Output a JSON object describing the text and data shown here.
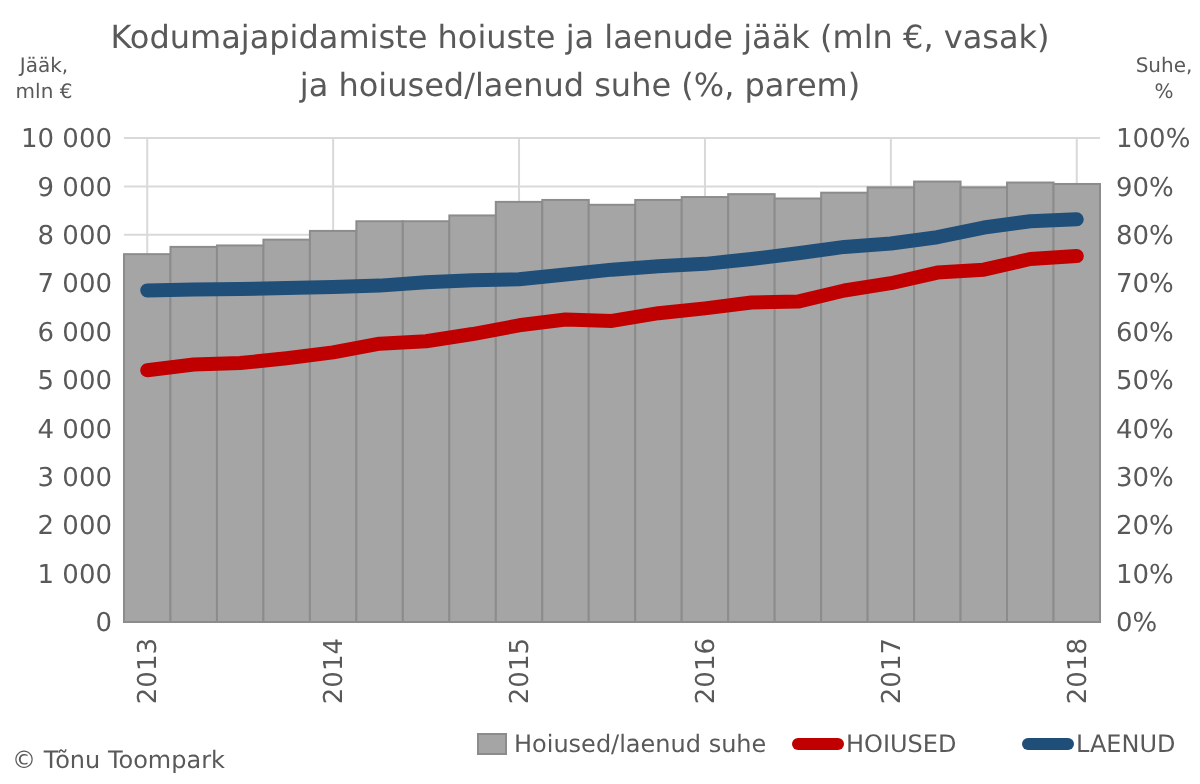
{
  "chart_data": {
    "type": "bar",
    "title": "Kodumajapidamiste hoiuste ja laenude jääk (mln €, vasak)\nja hoiused/laenud suhe (%, parem)",
    "ylabel": "Jääk,\nmln €",
    "y2label": "Suhe,\n%",
    "categories": [
      "2013",
      null,
      null,
      null,
      "2014",
      null,
      null,
      null,
      "2015",
      null,
      null,
      null,
      "2016",
      null,
      null,
      null,
      "2017",
      null,
      null,
      null,
      "2018"
    ],
    "series": [
      {
        "name": "Hoiused/laenud suhe",
        "axis": "y2",
        "color": "#a5a5a5",
        "values": [
          76,
          77.5,
          77.8,
          79,
          80.8,
          82.8,
          82.8,
          84,
          86.8,
          87.2,
          86.2,
          87.2,
          87.8,
          88.4,
          87.5,
          88.7,
          89.8,
          91,
          89.8,
          90.8,
          90.5
        ]
      },
      {
        "name": "HOIUSED",
        "type": "line",
        "color": "#c00000",
        "values": [
          5200,
          5320,
          5350,
          5450,
          5570,
          5750,
          5800,
          5950,
          6130,
          6250,
          6220,
          6380,
          6480,
          6600,
          6620,
          6850,
          7000,
          7220,
          7280,
          7500,
          7560
        ]
      },
      {
        "name": "LAENUD",
        "type": "line",
        "color": "#1f4e79",
        "values": [
          6850,
          6870,
          6880,
          6900,
          6920,
          6950,
          7020,
          7060,
          7080,
          7180,
          7280,
          7350,
          7400,
          7500,
          7620,
          7750,
          7820,
          7950,
          8150,
          8280,
          8320
        ]
      }
    ],
    "ylim": [
      0,
      10000
    ],
    "yticks": [
      0,
      {
        "value": 1000,
        "label": "1 000"
      },
      {
        "value": 2000,
        "label": "2 000"
      },
      {
        "value": 3000,
        "label": "3 000"
      },
      {
        "value": 4000,
        "label": "4 000"
      },
      {
        "value": 5000,
        "label": "5 000"
      },
      {
        "value": 6000,
        "label": "6 000"
      },
      {
        "value": 7000,
        "label": "7 000"
      },
      {
        "value": 8000,
        "label": "8 000"
      },
      {
        "value": 9000,
        "label": "9 000"
      },
      {
        "value": 10000,
        "label": "10 000"
      }
    ],
    "y2lim": [
      0,
      100
    ],
    "y2ticks": [
      {
        "value": 0,
        "label": "0%"
      },
      {
        "value": 10,
        "label": "10%"
      },
      {
        "value": 20,
        "label": "20%"
      },
      {
        "value": 30,
        "label": "30%"
      },
      {
        "value": 40,
        "label": "40%"
      },
      {
        "value": 50,
        "label": "50%"
      },
      {
        "value": 60,
        "label": "60%"
      },
      {
        "value": 70,
        "label": "70%"
      },
      {
        "value": 80,
        "label": "80%"
      },
      {
        "value": 90,
        "label": "90%"
      },
      {
        "value": 100,
        "label": "100%"
      }
    ],
    "grid": true,
    "legend": "bottom right",
    "line_style": "solid",
    "marker": "none",
    "annotations": [
      "© Tõnu Toompark"
    ]
  }
}
